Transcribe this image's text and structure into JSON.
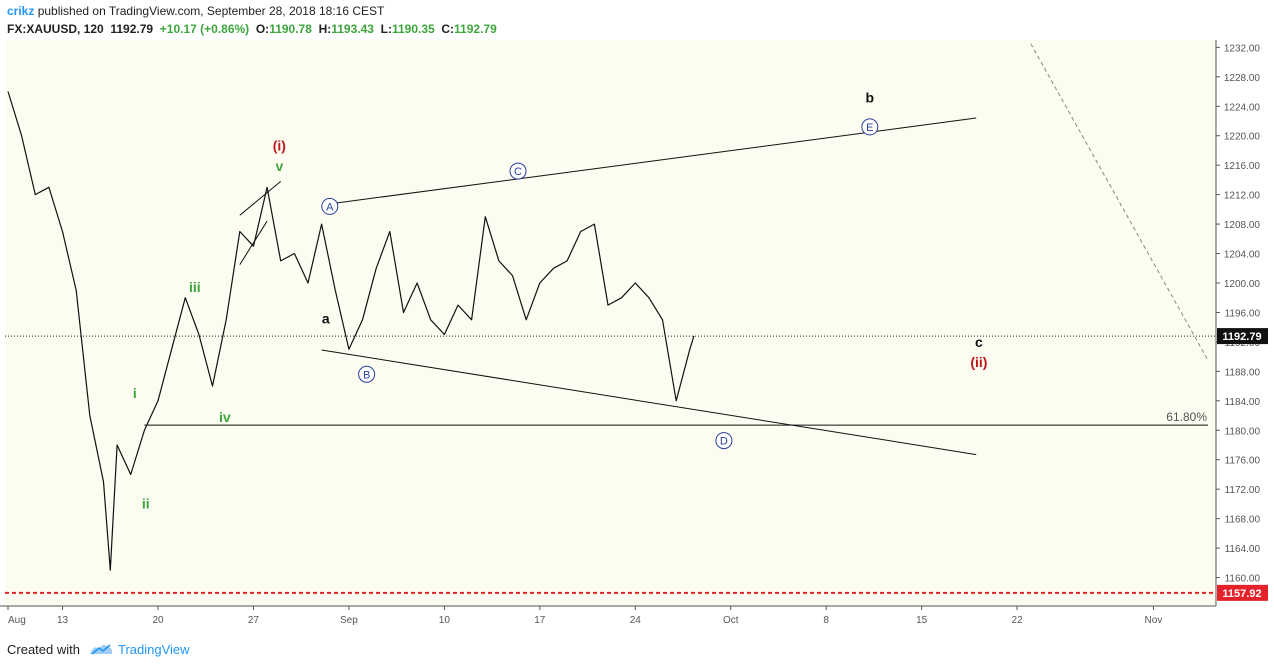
{
  "header": {
    "author": "crikz",
    "published_text": " published on TradingView.com, September 28, 2018 18:16 CEST",
    "symbol": "FX:XAUUSD, 120",
    "price": "1192.79",
    "change": "+10.17 (+0.86%)",
    "o_label": "O:",
    "o_value": "1190.78",
    "h_label": "H:",
    "h_value": "1193.43",
    "l_label": "L:",
    "l_value": "1190.35",
    "c_label": "C:",
    "c_value": "1192.79"
  },
  "footer": {
    "created_with": "Created with",
    "brand": "TradingView"
  },
  "colors": {
    "up": "#3ca63c",
    "down": "#111111",
    "circle": "#2a3f9d",
    "wave_red": "#c3161c",
    "wave_green": "#3ca63c",
    "price_tag": "#111111",
    "low_line": "#e5222a"
  },
  "chart_data": {
    "type": "line",
    "title": "",
    "symbol": "FX:XAUUSD",
    "interval_minutes": 120,
    "ylim": [
      1156,
      1233
    ],
    "y_ticks": [
      1160,
      1164,
      1168,
      1172,
      1176,
      1180,
      1184,
      1188,
      1192,
      1196,
      1200,
      1204,
      1208,
      1212,
      1216,
      1220,
      1224,
      1228,
      1232
    ],
    "y_tick_labels": [
      "1160.00",
      "1164.00",
      "1168.00",
      "1172.00",
      "1176.00",
      "1180.00",
      "1184.00",
      "1188.00",
      "1192.00",
      "1196.00",
      "1200.00",
      "1204.00",
      "1208.00",
      "1212.00",
      "1216.00",
      "1220.00",
      "1224.00",
      "1228.00",
      "1232.00"
    ],
    "xlim": [
      "2018-08-09",
      "2018-11-05"
    ],
    "x_ticks": [
      {
        "date": "2018-08-09",
        "label": "Aug"
      },
      {
        "date": "2018-08-13",
        "label": "13"
      },
      {
        "date": "2018-08-20",
        "label": "20"
      },
      {
        "date": "2018-08-27",
        "label": "27"
      },
      {
        "date": "2018-09-03",
        "label": "Sep"
      },
      {
        "date": "2018-09-10",
        "label": "10"
      },
      {
        "date": "2018-09-17",
        "label": "17"
      },
      {
        "date": "2018-09-24",
        "label": "24"
      },
      {
        "date": "2018-10-01",
        "label": "Oct"
      },
      {
        "date": "2018-10-08",
        "label": "8"
      },
      {
        "date": "2018-10-15",
        "label": "15"
      },
      {
        "date": "2018-10-22",
        "label": "22"
      },
      {
        "date": "2018-11-01",
        "label": "Nov"
      }
    ],
    "price_path": [
      [
        "2018-08-09",
        1226
      ],
      [
        "2018-08-10",
        1220
      ],
      [
        "2018-08-11",
        1212
      ],
      [
        "2018-08-12",
        1213
      ],
      [
        "2018-08-13",
        1207
      ],
      [
        "2018-08-14",
        1199
      ],
      [
        "2018-08-15",
        1182
      ],
      [
        "2018-08-16",
        1173
      ],
      [
        "2018-08-16.5",
        1161
      ],
      [
        "2018-08-17",
        1178
      ],
      [
        "2018-08-18",
        1174
      ],
      [
        "2018-08-19",
        1180
      ],
      [
        "2018-08-20",
        1184
      ],
      [
        "2018-08-21",
        1191
      ],
      [
        "2018-08-22",
        1198
      ],
      [
        "2018-08-23",
        1193
      ],
      [
        "2018-08-24",
        1186
      ],
      [
        "2018-08-25",
        1195
      ],
      [
        "2018-08-26",
        1207
      ],
      [
        "2018-08-27",
        1205
      ],
      [
        "2018-08-28",
        1213
      ],
      [
        "2018-08-29",
        1203
      ],
      [
        "2018-08-30",
        1204
      ],
      [
        "2018-08-31",
        1200
      ],
      [
        "2018-09-01",
        1208
      ],
      [
        "2018-09-02",
        1199
      ],
      [
        "2018-09-03",
        1191
      ],
      [
        "2018-09-04",
        1195
      ],
      [
        "2018-09-05",
        1202
      ],
      [
        "2018-09-06",
        1207
      ],
      [
        "2018-09-07",
        1196
      ],
      [
        "2018-09-08",
        1200
      ],
      [
        "2018-09-09",
        1195
      ],
      [
        "2018-09-10",
        1193
      ],
      [
        "2018-09-11",
        1197
      ],
      [
        "2018-09-12",
        1195
      ],
      [
        "2018-09-13",
        1209
      ],
      [
        "2018-09-14",
        1203
      ],
      [
        "2018-09-15",
        1201
      ],
      [
        "2018-09-16",
        1195
      ],
      [
        "2018-09-17",
        1200
      ],
      [
        "2018-09-18",
        1202
      ],
      [
        "2018-09-19",
        1203
      ],
      [
        "2018-09-20",
        1207
      ],
      [
        "2018-09-21",
        1208
      ],
      [
        "2018-09-22",
        1197
      ],
      [
        "2018-09-23",
        1198
      ],
      [
        "2018-09-24",
        1200
      ],
      [
        "2018-09-25",
        1198
      ],
      [
        "2018-09-26",
        1195
      ],
      [
        "2018-09-27",
        1184
      ],
      [
        "2018-09-28",
        1191
      ],
      [
        "2018-09-28.3",
        1192.79
      ]
    ],
    "last_price": 1192.79,
    "last_price_label": "1192.79",
    "low_level": 1157.92,
    "low_level_label": "1157.92",
    "fib_level": 1180.7,
    "fib_label": "61.80%",
    "trendlines": [
      {
        "name": "upper-channel",
        "from": [
          "2018-09-01",
          1210.6
        ],
        "to": [
          "2018-10-19",
          1222.4
        ]
      },
      {
        "name": "lower-channel",
        "from": [
          "2018-09-01",
          1190.9
        ],
        "to": [
          "2018-10-19",
          1176.7
        ]
      },
      {
        "name": "diagonal-upper",
        "from": [
          "2018-08-26",
          1209.2
        ],
        "to": [
          "2018-08-29",
          1213.8
        ]
      },
      {
        "name": "diagonal-lower",
        "from": [
          "2018-08-26",
          1202.5
        ],
        "to": [
          "2018-08-28",
          1208.4
        ]
      },
      {
        "name": "fib-line",
        "from": [
          "2018-08-19",
          1180.7
        ],
        "to": [
          "2018-11-05",
          1180.7
        ]
      },
      {
        "name": "future-dashed",
        "from": [
          "2018-10-23",
          1232.5
        ],
        "to": [
          "2018-11-05",
          1189.5
        ],
        "dashed": true
      }
    ],
    "annotations": [
      {
        "text": "(i)",
        "x": "2018-08-28.9",
        "y": 1218,
        "color": "red",
        "style": "wave"
      },
      {
        "text": "v",
        "x": "2018-08-28.9",
        "y": 1215.2,
        "color": "green",
        "style": "wave"
      },
      {
        "text": "iii",
        "x": "2018-08-22.7",
        "y": 1198.8,
        "color": "green",
        "style": "wave"
      },
      {
        "text": "i",
        "x": "2018-08-18.3",
        "y": 1184.4,
        "color": "green",
        "style": "wave"
      },
      {
        "text": "ii",
        "x": "2018-08-19.1",
        "y": 1169.4,
        "color": "green",
        "style": "wave"
      },
      {
        "text": "iv",
        "x": "2018-08-24.9",
        "y": 1181.1,
        "color": "green",
        "style": "wave"
      },
      {
        "text": "a",
        "x": "2018-09-01.3",
        "y": 1194.5,
        "color": "black",
        "style": "wave"
      },
      {
        "text": "A",
        "x": "2018-09-01.6",
        "y": 1210.4,
        "color": "circle",
        "style": "circle"
      },
      {
        "text": "B",
        "x": "2018-09-04.3",
        "y": 1187.6,
        "color": "circle",
        "style": "circle"
      },
      {
        "text": "C",
        "x": "2018-09-15.4",
        "y": 1215.2,
        "color": "circle",
        "style": "circle"
      },
      {
        "text": "D",
        "x": "2018-09-30.5",
        "y": 1178.6,
        "color": "circle",
        "style": "circle"
      },
      {
        "text": "b",
        "x": "2018-10-11.2",
        "y": 1224.5,
        "color": "black",
        "style": "wave"
      },
      {
        "text": "E",
        "x": "2018-10-11.2",
        "y": 1221.2,
        "color": "circle",
        "style": "circle"
      },
      {
        "text": "c",
        "x": "2018-10-19.2",
        "y": 1191.3,
        "color": "black",
        "style": "wave"
      },
      {
        "text": "(ii)",
        "x": "2018-10-19.2",
        "y": 1188.6,
        "color": "red",
        "style": "wave"
      }
    ],
    "grid": false
  }
}
